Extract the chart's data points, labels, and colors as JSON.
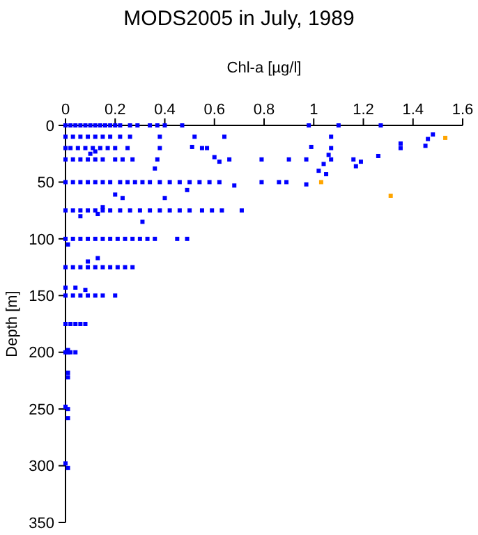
{
  "chart_data": {
    "type": "scatter",
    "title": "MODS2005 in July, 1989",
    "xlabel": "Chl-a [µg/l]",
    "ylabel": "Depth [m]",
    "xlim": [
      0,
      1.6
    ],
    "xticks": [
      0,
      0.2,
      0.4,
      0.6,
      0.8,
      1,
      1.2,
      1.4,
      1.6
    ],
    "ylim": [
      350,
      0
    ],
    "yticks": [
      0,
      50,
      100,
      150,
      200,
      250,
      300,
      350
    ],
    "grid": false,
    "marker": "square",
    "series": [
      {
        "color": "#0000ff",
        "x": [
          0,
          0.02,
          0.04,
          0.06,
          0.08,
          0.1,
          0.12,
          0.14,
          0.16,
          0.18,
          0.2,
          0.22,
          0.26,
          0.29,
          0.34,
          0.37,
          0.4,
          0.47,
          0.98,
          1.1,
          1.27,
          0,
          0.03,
          0.06,
          0.09,
          0.12,
          0.15,
          0.18,
          0.22,
          0.26,
          0.38,
          0.52,
          0.64,
          1.07,
          1.48,
          1.46,
          1.35,
          1.45,
          1.35,
          0,
          0.02,
          0.05,
          0.08,
          0.11,
          0.14,
          0.17,
          0.2,
          0.25,
          0.38,
          0.51,
          0.55,
          0.57,
          0.99,
          1.07,
          1.06,
          1.07,
          1.26,
          0.1,
          0.12,
          0,
          0.03,
          0.06,
          0.09,
          0.12,
          0.15,
          0.2,
          0.23,
          0.27,
          0.37,
          0.6,
          0.62,
          0.66,
          0.79,
          0.9,
          0.97,
          1.16,
          1.19,
          1.17,
          1.04,
          1.02,
          1.05,
          0.36,
          0,
          0.03,
          0.06,
          0.09,
          0.12,
          0.15,
          0.18,
          0.22,
          0.25,
          0.28,
          0.31,
          0.34,
          0.38,
          0.42,
          0.46,
          0.5,
          0.54,
          0.58,
          0.62,
          0.68,
          0.79,
          0.86,
          0.89,
          0.97,
          0.2,
          0.23,
          0.4,
          0.49,
          0,
          0.03,
          0.06,
          0.09,
          0.12,
          0.15,
          0.18,
          0.22,
          0.26,
          0.3,
          0.34,
          0.38,
          0.42,
          0.46,
          0.5,
          0.55,
          0.59,
          0.63,
          0.71,
          0.06,
          0.13,
          0.31,
          0.15,
          0,
          0.03,
          0.06,
          0.09,
          0.12,
          0.15,
          0.18,
          0.21,
          0.24,
          0.27,
          0.3,
          0.33,
          0.36,
          0.45,
          0.49,
          0.01,
          0,
          0.03,
          0.06,
          0.09,
          0.12,
          0.15,
          0.18,
          0.21,
          0.24,
          0.27,
          0.09,
          0.13,
          0,
          0.03,
          0.06,
          0.09,
          0.12,
          0.15,
          0.2,
          0,
          0.04,
          0.08,
          0,
          0.02,
          0.04,
          0.06,
          0.08,
          0,
          0.01,
          0.02,
          0.04,
          0.01,
          0.01,
          0.01,
          0,
          0.01,
          0.01,
          0,
          0.01
        ],
        "values": [
          0,
          0,
          0,
          0,
          0,
          0,
          0,
          0,
          0,
          0,
          0,
          0,
          0,
          0,
          0,
          0,
          0,
          0,
          0,
          0,
          0,
          10,
          10,
          10,
          10,
          10,
          10,
          10,
          10,
          10,
          10,
          10,
          10,
          10,
          8,
          12,
          16,
          18,
          20,
          20,
          20,
          20,
          20,
          20,
          20,
          20,
          20,
          20,
          20,
          19,
          20,
          20,
          19,
          20,
          26,
          30,
          27,
          25,
          23,
          30,
          30,
          30,
          30,
          30,
          30,
          30,
          30,
          30,
          30,
          28,
          32,
          30,
          30,
          30,
          30,
          30,
          32,
          36,
          34,
          40,
          43,
          38,
          50,
          50,
          50,
          50,
          50,
          50,
          50,
          50,
          50,
          50,
          50,
          50,
          50,
          50,
          50,
          50,
          50,
          50,
          50,
          53,
          50,
          50,
          50,
          52,
          61,
          64,
          64,
          57,
          75,
          75,
          75,
          75,
          75,
          75,
          75,
          75,
          75,
          75,
          75,
          75,
          75,
          75,
          75,
          75,
          75,
          75,
          75,
          80,
          78,
          85,
          72,
          100,
          100,
          100,
          100,
          100,
          100,
          100,
          100,
          100,
          100,
          100,
          100,
          100,
          100,
          100,
          105,
          125,
          125,
          125,
          125,
          125,
          125,
          125,
          125,
          125,
          125,
          120,
          117,
          150,
          150,
          150,
          150,
          150,
          150,
          150,
          143,
          143,
          145,
          175,
          175,
          175,
          175,
          175,
          200,
          200,
          200,
          200,
          198,
          218,
          222,
          248,
          250,
          258,
          298,
          302
        ]
      },
      {
        "color": "#ffa500",
        "x": [
          1.53,
          1.03,
          1.31
        ],
        "values": [
          11,
          50,
          62
        ]
      }
    ]
  }
}
